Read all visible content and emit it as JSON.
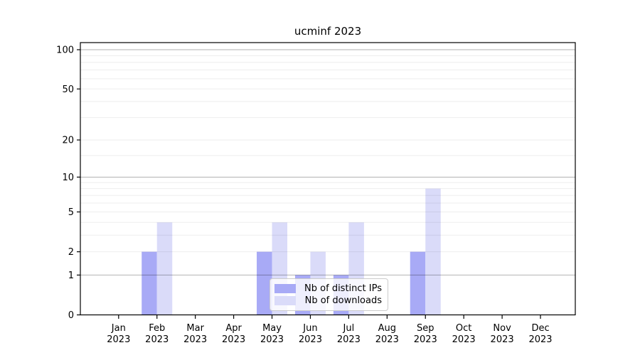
{
  "figure": {
    "title": "ucminf 2023"
  },
  "chart_data": {
    "type": "bar",
    "title": "ucminf 2023",
    "xlabel": "",
    "ylabel": "",
    "yscale": "log1p",
    "ylim": [
      0,
      113.3
    ],
    "yticks": [
      0,
      1,
      2,
      5,
      10,
      20,
      50,
      100
    ],
    "major_gridlines": [
      1,
      10,
      100
    ],
    "minor_gridlines": [
      2,
      3,
      4,
      5,
      6,
      7,
      8,
      9,
      15,
      20,
      30,
      40,
      50,
      60,
      70,
      80,
      90
    ],
    "grid": "horizontal, drawn over bars",
    "legend_position": "inside lower-center",
    "categories": [
      "Jan 2023",
      "Feb 2023",
      "Mar 2023",
      "Apr 2023",
      "May 2023",
      "Jun 2023",
      "Jul 2023",
      "Aug 2023",
      "Sep 2023",
      "Oct 2023",
      "Nov 2023",
      "Dec 2023"
    ],
    "series": [
      {
        "name": "Nb of distinct IPs",
        "color": "#a8aaf6",
        "values": [
          0,
          2,
          0,
          0,
          2,
          1,
          1,
          0,
          2,
          0,
          0,
          0
        ]
      },
      {
        "name": "Nb of downloads",
        "color": "#dadbf9",
        "values": [
          0,
          4,
          0,
          0,
          4,
          2,
          4,
          0,
          8,
          0,
          0,
          0
        ]
      }
    ]
  }
}
